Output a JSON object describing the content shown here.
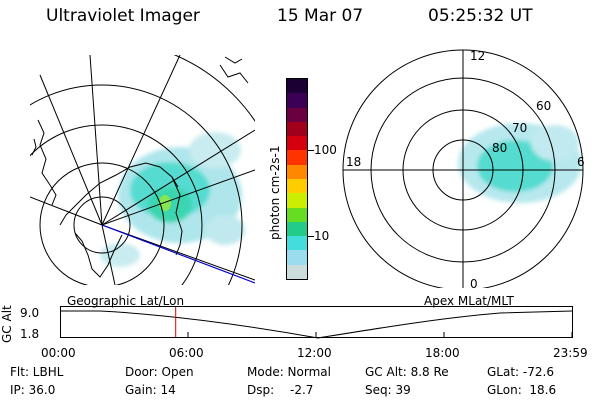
{
  "header": {
    "title": "Ultraviolet Imager",
    "date": "15 Mar 07",
    "time": "05:25:32 UT"
  },
  "left_panel": {
    "caption": "Geographic Lat/Lon"
  },
  "right_panel": {
    "caption": "Apex MLat/MLT",
    "mlt_labels": [
      "12",
      "18",
      "6",
      "0"
    ],
    "mlat_labels": [
      "60",
      "70",
      "80"
    ]
  },
  "colorbar": {
    "unit_label": "photon cm-2s-1",
    "ticks": [
      "100",
      "10"
    ],
    "colors": [
      "#1a0033",
      "#3b0055",
      "#6a0040",
      "#a0001a",
      "#d40010",
      "#ff3300",
      "#ff8800",
      "#ffcc00",
      "#ccee00",
      "#66dd22",
      "#22cc88",
      "#44dddd",
      "#99ddee",
      "#ccdddd"
    ]
  },
  "timeline": {
    "axis_label": "GC Alt",
    "ymax": "9.0",
    "ymin": "1.8",
    "ticks": [
      "00:00",
      "06:00",
      "12:00",
      "18:00",
      "23:59"
    ],
    "current_fraction": 0.226,
    "marker_color": "#dd0000"
  },
  "info": {
    "row1": {
      "filter": "Flt: LBHL",
      "door": "Door: Open",
      "mode": "Mode: Normal",
      "gcalt": "GC Alt: 8.8 Re",
      "glat": "GLat: -72.6"
    },
    "row2": {
      "ip": "IP: 36.0",
      "gain": "Gain: 14",
      "dsp_label": "Dsp:",
      "dsp_value": "-2.7",
      "seq": "Seq: 39",
      "glon": "GLon:  18.6"
    }
  }
}
